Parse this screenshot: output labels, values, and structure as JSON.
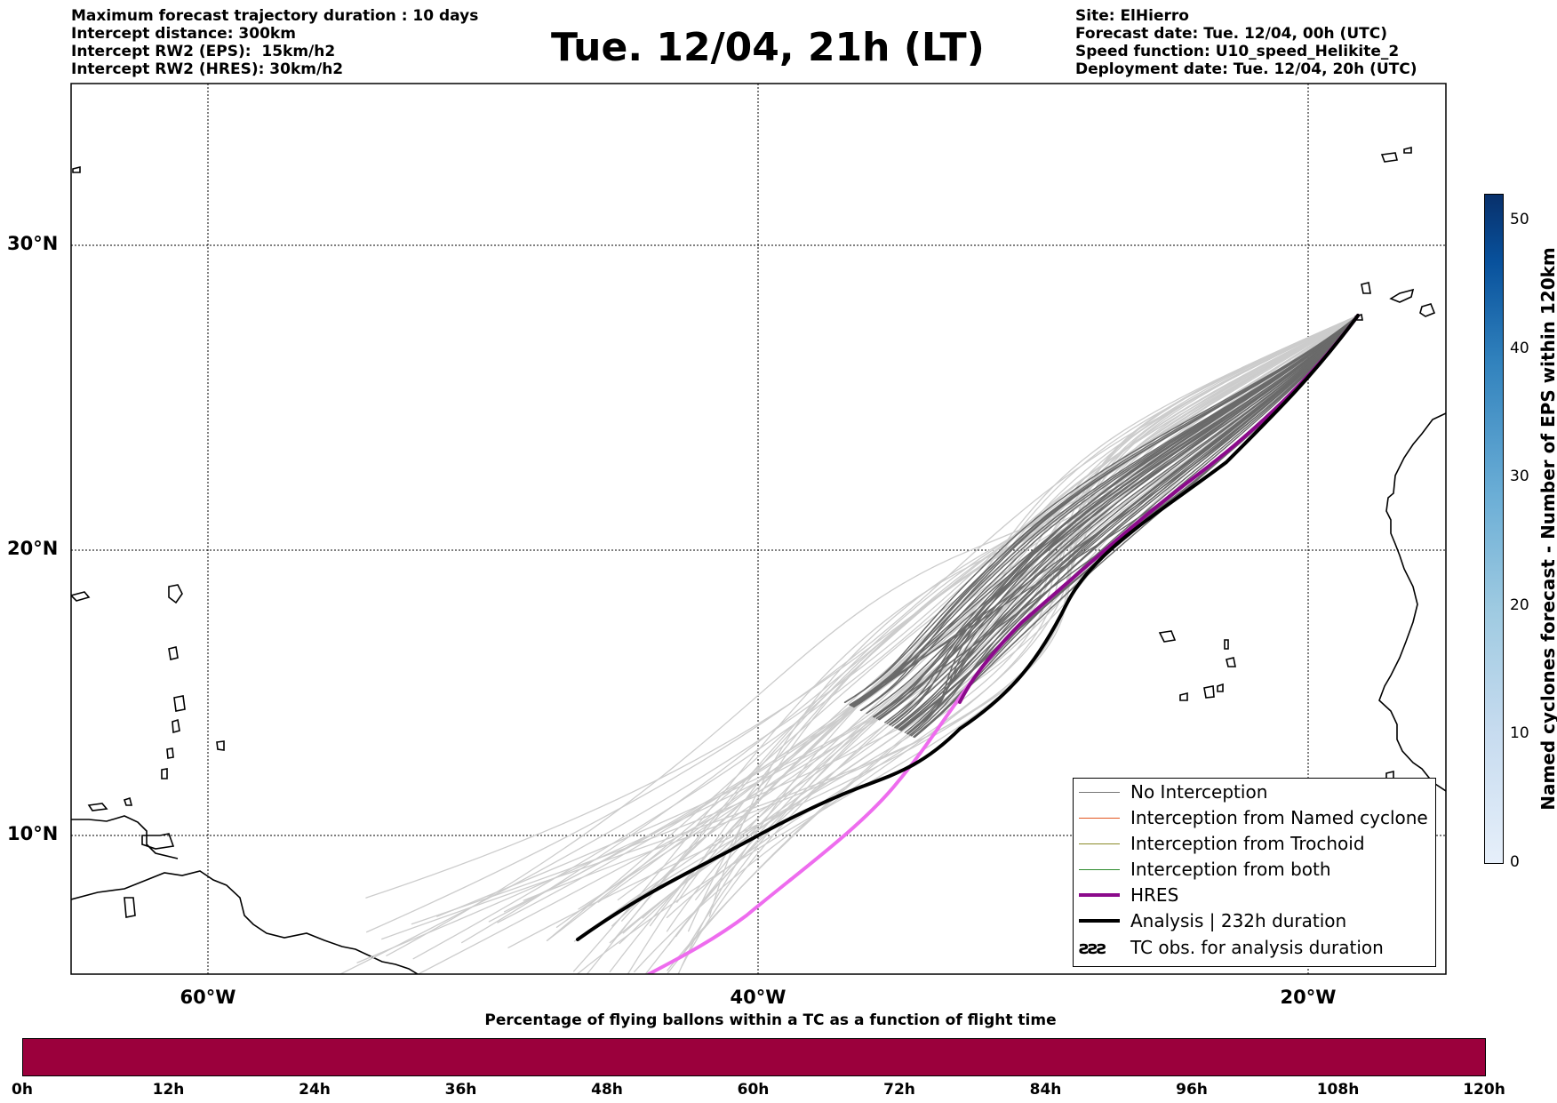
{
  "header": {
    "left_lines": [
      "Maximum forecast trajectory duration : 10 days",
      "Intercept distance: 300km",
      "Intercept RW2 (EPS):  15km/h2",
      "Intercept RW2 (HRES): 30km/h2"
    ],
    "title": "Tue. 12/04, 21h (LT)",
    "right_lines": [
      "Site: ElHierro",
      "Forecast date: Tue. 12/04, 00h (UTC)",
      "Speed function: U10_speed_Helikite_2",
      "Deployment date: Tue. 12/04, 20h (UTC)"
    ]
  },
  "map": {
    "lat_labels": [
      "30°N",
      "20°N",
      "10°N"
    ],
    "lon_labels": [
      "60°W",
      "40°W",
      "20°W"
    ]
  },
  "legend": {
    "items": [
      {
        "label": "No Interception",
        "color": "#777777"
      },
      {
        "label": "Interception from Named cyclone",
        "color": "#e2561f"
      },
      {
        "label": "Interception from Trochoid",
        "color": "#8a8a2a"
      },
      {
        "label": "Interception from both",
        "color": "#2e8b2e"
      },
      {
        "label": "HRES",
        "color": "#8b0a8b"
      },
      {
        "label": "Analysis | 232h duration",
        "color": "#000000"
      }
    ],
    "tc_label": "TC obs. for analysis duration",
    "tc_symbol": "ƨƨƨ"
  },
  "colorbar": {
    "label": "Named cyclones forecast - Number of EPS within 120km",
    "ticks": [
      "0",
      "10",
      "20",
      "30",
      "40",
      "50"
    ],
    "tick_values": [
      0,
      10,
      20,
      30,
      40,
      50
    ],
    "max": 52
  },
  "time_bar": {
    "title": "Percentage of flying ballons within a TC as a function of flight time",
    "ticks": [
      "0h",
      "12h",
      "24h",
      "36h",
      "48h",
      "60h",
      "72h",
      "84h",
      "96h",
      "108h",
      "120h"
    ],
    "color": "#9b003c"
  }
}
